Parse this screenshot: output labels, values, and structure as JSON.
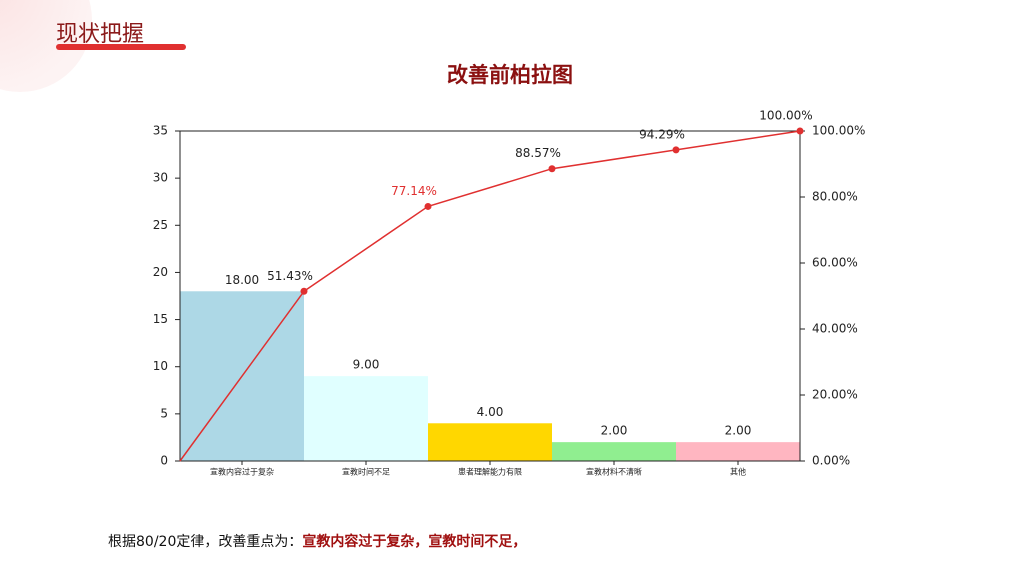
{
  "header": {
    "title": "现状把握"
  },
  "chart_data": {
    "type": "pareto",
    "title": "改善前柏拉图",
    "categories": [
      "宣教内容过于复杂",
      "宣教时间不足",
      "患者理解能力有限",
      "宣教材料不清晰",
      "其他"
    ],
    "values": [
      18,
      9,
      4,
      2,
      2
    ],
    "value_labels": [
      "18.00",
      "9.00",
      "4.00",
      "2.00",
      "2.00"
    ],
    "colors": [
      "#add8e6",
      "#e0ffff",
      "#ffd700",
      "#90ee90",
      "#ffb6c1"
    ],
    "ylim": [
      0,
      35
    ],
    "yticks": [
      0,
      5,
      10,
      15,
      20,
      25,
      30,
      35
    ],
    "cumulative": {
      "values": [
        51.43,
        77.14,
        88.57,
        94.29,
        100
      ],
      "value_labels": [
        "51.43%",
        "77.14%",
        "88.57%",
        "94.29%",
        "100.00%"
      ],
      "label_colors": [
        "#222222",
        "#e03030",
        "#222222",
        "#222222",
        "#222222"
      ],
      "color": "#e03030",
      "axis": "y2"
    },
    "y2lim": [
      0,
      100
    ],
    "y2ticks": [
      {
        "value": 0,
        "label": "0.00%"
      },
      {
        "value": 20,
        "label": "20.00%"
      },
      {
        "value": 40,
        "label": "40.00%"
      },
      {
        "value": 60,
        "label": "60.00%"
      },
      {
        "value": 80,
        "label": "80.00%"
      },
      {
        "value": 100,
        "label": "100.00%"
      }
    ]
  },
  "footer": {
    "text": "根据80/20定律，改善重点为：",
    "emphasis": "宣教内容过于复杂，宣教时间不足，"
  }
}
